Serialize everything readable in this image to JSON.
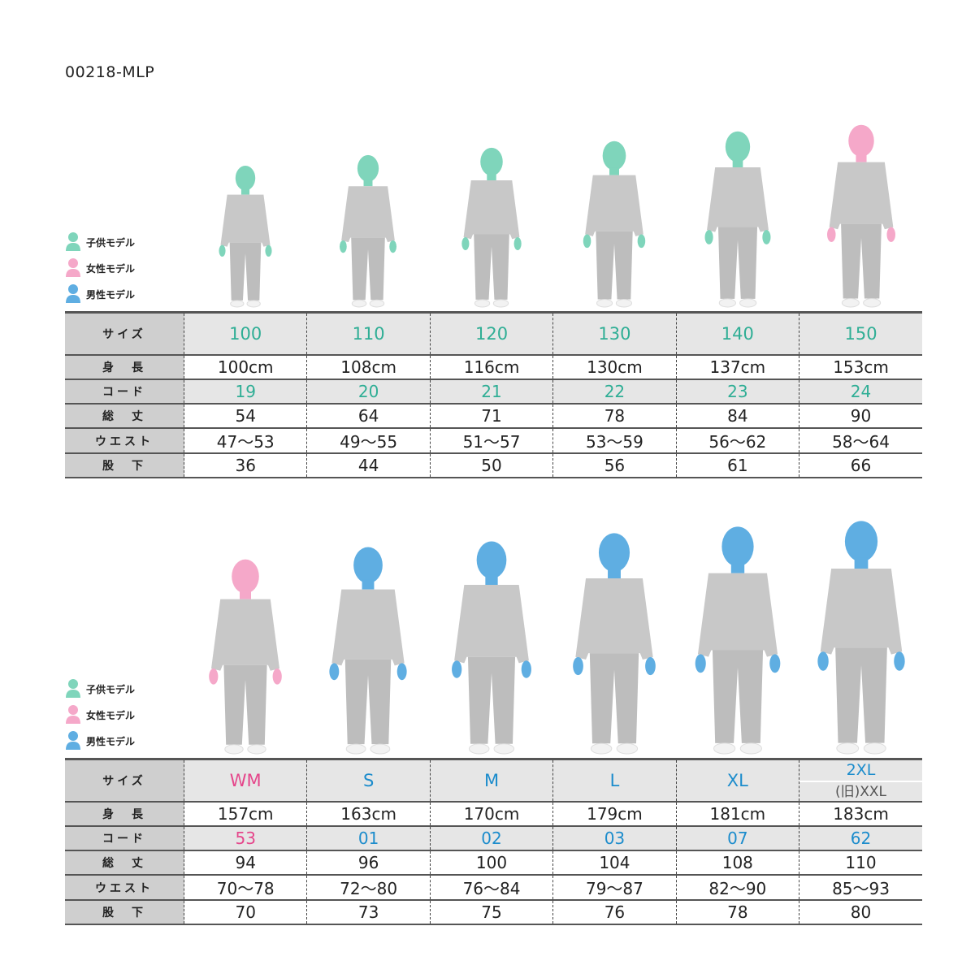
{
  "product_code": "00218-MLP",
  "legend": [
    {
      "label": "子供モデル",
      "color": "#7fd5bb",
      "icon": "child-person-icon"
    },
    {
      "label": "女性モデル",
      "color": "#f5a8c9",
      "icon": "female-person-icon"
    },
    {
      "label": "男性モデル",
      "color": "#5faee2",
      "icon": "male-person-icon"
    }
  ],
  "colors": {
    "child": "#2fae95",
    "female": "#e5468b",
    "male": "#1c8ccc",
    "child_head": "#7fd5bb",
    "female_head": "#f5a8c9",
    "male_head": "#5faee2",
    "garment": "#c8c8c8"
  },
  "row_labels": {
    "size": "サイズ",
    "height": "身　長",
    "code": "コード",
    "length": "総　丈",
    "waist": "ウエスト",
    "inseam": "股　下"
  },
  "tables": [
    {
      "columns": [
        {
          "size": "100",
          "model": "child",
          "height": "100cm",
          "code": "19",
          "length": "54",
          "waist": "47〜53",
          "inseam": "36"
        },
        {
          "size": "110",
          "model": "child",
          "height": "108cm",
          "code": "20",
          "length": "64",
          "waist": "49〜55",
          "inseam": "44"
        },
        {
          "size": "120",
          "model": "child",
          "height": "116cm",
          "code": "21",
          "length": "71",
          "waist": "51〜57",
          "inseam": "50"
        },
        {
          "size": "130",
          "model": "child",
          "height": "130cm",
          "code": "22",
          "length": "78",
          "waist": "53〜59",
          "inseam": "56"
        },
        {
          "size": "140",
          "model": "child",
          "height": "137cm",
          "code": "23",
          "length": "84",
          "waist": "56〜62",
          "inseam": "61"
        },
        {
          "size": "150",
          "model": "female",
          "sizecolor": "child",
          "height": "153cm",
          "code": "24",
          "length": "90",
          "waist": "58〜64",
          "inseam": "66"
        }
      ]
    },
    {
      "columns": [
        {
          "size": "WM",
          "model": "female",
          "height": "157cm",
          "code": "53",
          "length": "94",
          "waist": "70〜78",
          "inseam": "70"
        },
        {
          "size": "S",
          "model": "male",
          "height": "163cm",
          "code": "01",
          "length": "96",
          "waist": "72〜80",
          "inseam": "73"
        },
        {
          "size": "M",
          "model": "male",
          "height": "170cm",
          "code": "02",
          "length": "100",
          "waist": "76〜84",
          "inseam": "75"
        },
        {
          "size": "L",
          "model": "male",
          "height": "179cm",
          "code": "03",
          "length": "104",
          "waist": "79〜87",
          "inseam": "76"
        },
        {
          "size": "XL",
          "model": "male",
          "height": "181cm",
          "code": "07",
          "length": "108",
          "waist": "82〜90",
          "inseam": "78"
        },
        {
          "size": "2XL",
          "size_sub": "(旧)XXL",
          "model": "male",
          "height": "183cm",
          "code": "62",
          "length": "110",
          "waist": "85〜93",
          "inseam": "80"
        }
      ]
    }
  ]
}
